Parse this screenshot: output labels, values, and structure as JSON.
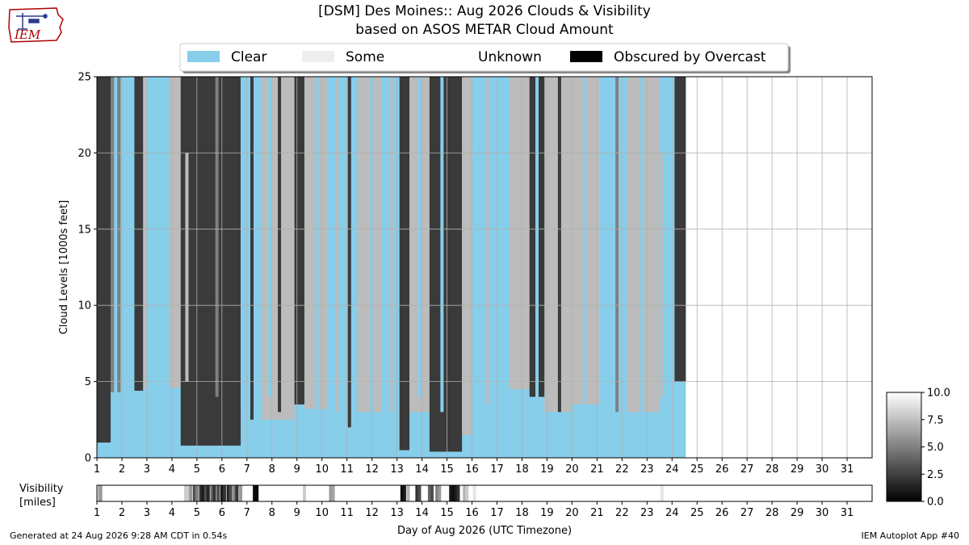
{
  "header": {
    "title_line1": "[DSM] Des Moines:: Aug 2026 Clouds & Visibility",
    "title_line2": "based on ASOS METAR Cloud Amount"
  },
  "logo": {
    "text": "IEM",
    "icon": "iowa-state-outline-logo"
  },
  "footer": {
    "generated": "Generated at 24 Aug 2026 9:28 AM CDT in 0.54s",
    "app": "IEM Autoplot App #40"
  },
  "chart_data": [
    {
      "type": "area",
      "title": "[DSM] Des Moines:: Aug 2026 Clouds & Visibility",
      "ylabel": "Cloud Levels [1000s feet]",
      "xlabel": "Day of Aug 2026 (UTC Timezone)",
      "ylim": [
        0,
        25
      ],
      "xlim": [
        1,
        32
      ],
      "yticks": [
        0,
        5,
        10,
        15,
        20,
        25
      ],
      "xticks": [
        1,
        2,
        3,
        4,
        5,
        6,
        7,
        8,
        9,
        10,
        11,
        12,
        13,
        14,
        15,
        16,
        17,
        18,
        19,
        20,
        21,
        22,
        23,
        24,
        25,
        26,
        27,
        28,
        29,
        30,
        31
      ],
      "grid": true,
      "legend": {
        "placement": "top-center",
        "entries": [
          {
            "label": "Clear",
            "color": "#87ceeb"
          },
          {
            "label": "Some",
            "color": "#eeeeee"
          },
          {
            "label": "Unknown",
            "color": "#ffffff"
          },
          {
            "label": "Obscured by Overcast",
            "color": "#000000"
          }
        ]
      },
      "data_end_day": 24.55,
      "colors": {
        "clear": "#87ceeb",
        "few": "#bcbcbc",
        "scattered": "#7f7f7f",
        "broken": "#3a3a3a",
        "overcast": "#000000"
      },
      "segments": [
        {
          "start": 1.0,
          "end": 1.55,
          "base": 1.0,
          "cover": "broken"
        },
        {
          "start": 1.55,
          "end": 1.95,
          "base": 4.3,
          "cover": "scattered"
        },
        {
          "start": 1.95,
          "end": 2.5,
          "base": 4.2,
          "cover": "clear"
        },
        {
          "start": 2.5,
          "end": 2.85,
          "base": 4.4,
          "cover": "broken"
        },
        {
          "start": 2.85,
          "end": 3.9,
          "base": 4.0,
          "cover": "clear"
        },
        {
          "start": 3.9,
          "end": 4.35,
          "base": 4.6,
          "cover": "few"
        },
        {
          "start": 4.35,
          "end": 6.75,
          "base": 0.8,
          "cover": "broken"
        },
        {
          "start": 6.75,
          "end": 7.6,
          "base": 3.0,
          "cover": "clear"
        },
        {
          "start": 7.6,
          "end": 8.9,
          "base": 2.5,
          "cover": "few"
        },
        {
          "start": 8.9,
          "end": 9.3,
          "base": 3.5,
          "cover": "broken"
        },
        {
          "start": 9.3,
          "end": 10.2,
          "base": 3.2,
          "cover": "few"
        },
        {
          "start": 10.2,
          "end": 11.4,
          "base": 4.0,
          "cover": "clear"
        },
        {
          "start": 11.4,
          "end": 12.4,
          "base": 3.0,
          "cover": "few"
        },
        {
          "start": 12.4,
          "end": 13.1,
          "base": 4.2,
          "cover": "clear"
        },
        {
          "start": 13.1,
          "end": 13.5,
          "base": 0.5,
          "cover": "broken"
        },
        {
          "start": 13.5,
          "end": 14.3,
          "base": 3.0,
          "cover": "few"
        },
        {
          "start": 14.3,
          "end": 15.6,
          "base": 0.4,
          "cover": "broken"
        },
        {
          "start": 15.6,
          "end": 16.0,
          "base": 1.5,
          "cover": "few"
        },
        {
          "start": 16.0,
          "end": 17.5,
          "base": 4.0,
          "cover": "clear"
        },
        {
          "start": 17.5,
          "end": 18.3,
          "base": 4.5,
          "cover": "few"
        },
        {
          "start": 18.3,
          "end": 18.9,
          "base": 4.0,
          "cover": "broken"
        },
        {
          "start": 18.9,
          "end": 20.0,
          "base": 3.0,
          "cover": "few"
        },
        {
          "start": 20.0,
          "end": 21.1,
          "base": 3.5,
          "cover": "few"
        },
        {
          "start": 21.1,
          "end": 22.2,
          "base": 4.5,
          "cover": "clear"
        },
        {
          "start": 22.2,
          "end": 23.5,
          "base": 3.0,
          "cover": "few"
        },
        {
          "start": 23.5,
          "end": 24.1,
          "base": 4.0,
          "cover": "clear"
        },
        {
          "start": 24.1,
          "end": 24.55,
          "base": 5.0,
          "cover": "broken"
        }
      ],
      "spikes": [
        {
          "day": 1.75,
          "base": 3.5,
          "top": 25,
          "cover": "clear"
        },
        {
          "day": 2.95,
          "base": 4.5,
          "top": 25,
          "cover": "few"
        },
        {
          "day": 4.6,
          "base": 5.0,
          "top": 20,
          "cover": "few"
        },
        {
          "day": 5.8,
          "base": 4.0,
          "top": 25,
          "cover": "scattered"
        },
        {
          "day": 7.2,
          "base": 2.5,
          "top": 25,
          "cover": "broken"
        },
        {
          "day": 7.9,
          "base": 4.0,
          "top": 25,
          "cover": "clear"
        },
        {
          "day": 8.3,
          "base": 3.0,
          "top": 25,
          "cover": "broken"
        },
        {
          "day": 9.8,
          "base": 3.0,
          "top": 25,
          "cover": "clear"
        },
        {
          "day": 10.6,
          "base": 3.0,
          "top": 25,
          "cover": "few"
        },
        {
          "day": 11.1,
          "base": 2.0,
          "top": 25,
          "cover": "broken"
        },
        {
          "day": 12.0,
          "base": 3.0,
          "top": 25,
          "cover": "clear"
        },
        {
          "day": 12.8,
          "base": 3.0,
          "top": 25,
          "cover": "few"
        },
        {
          "day": 13.9,
          "base": 4.0,
          "top": 25,
          "cover": "clear"
        },
        {
          "day": 14.8,
          "base": 3.0,
          "top": 25,
          "cover": "clear"
        },
        {
          "day": 16.6,
          "base": 3.5,
          "top": 25,
          "cover": "few"
        },
        {
          "day": 18.6,
          "base": 3.0,
          "top": 25,
          "cover": "clear"
        },
        {
          "day": 19.5,
          "base": 3.0,
          "top": 25,
          "cover": "broken"
        },
        {
          "day": 20.5,
          "base": 3.0,
          "top": 25,
          "cover": "clear"
        },
        {
          "day": 21.8,
          "base": 3.0,
          "top": 25,
          "cover": "scattered"
        },
        {
          "day": 22.8,
          "base": 3.0,
          "top": 25,
          "cover": "clear"
        },
        {
          "day": 23.6,
          "base": 4.0,
          "top": 20,
          "cover": "few"
        }
      ]
    },
    {
      "type": "heatmap",
      "ylabel": "Visibility [miles]",
      "xlabel": "Day of Aug 2026 (UTC Timezone)",
      "xlim": [
        1,
        32
      ],
      "xticks": [
        1,
        2,
        3,
        4,
        5,
        6,
        7,
        8,
        9,
        10,
        11,
        12,
        13,
        14,
        15,
        16,
        17,
        18,
        19,
        20,
        21,
        22,
        23,
        24,
        25,
        26,
        27,
        28,
        29,
        30,
        31
      ],
      "colorbar": {
        "range": [
          0.0,
          10.0
        ],
        "ticks": [
          "0.0",
          "2.5",
          "5.0",
          "7.5",
          "10.0"
        ]
      },
      "values": [
        {
          "day": 1.1,
          "vis": 7.0
        },
        {
          "day": 1.15,
          "vis": 6.0
        },
        {
          "day": 4.55,
          "vis": 8.0
        },
        {
          "day": 4.65,
          "vis": 8.0
        },
        {
          "day": 4.75,
          "vis": 6.0
        },
        {
          "day": 4.9,
          "vis": 3.0
        },
        {
          "day": 5.0,
          "vis": 5.0
        },
        {
          "day": 5.15,
          "vis": 2.0
        },
        {
          "day": 5.25,
          "vis": 1.0
        },
        {
          "day": 5.35,
          "vis": 3.0
        },
        {
          "day": 5.45,
          "vis": 1.5
        },
        {
          "day": 5.6,
          "vis": 4.0
        },
        {
          "day": 5.7,
          "vis": 2.0
        },
        {
          "day": 5.85,
          "vis": 3.0
        },
        {
          "day": 6.0,
          "vis": 1.0
        },
        {
          "day": 6.1,
          "vis": 2.0
        },
        {
          "day": 6.25,
          "vis": 1.5
        },
        {
          "day": 6.35,
          "vis": 3.0
        },
        {
          "day": 6.5,
          "vis": 5.0
        },
        {
          "day": 6.6,
          "vis": 2.0
        },
        {
          "day": 6.75,
          "vis": 6.0
        },
        {
          "day": 7.3,
          "vis": 0.5
        },
        {
          "day": 7.4,
          "vis": 0.3
        },
        {
          "day": 9.3,
          "vis": 8.0
        },
        {
          "day": 10.35,
          "vis": 6.0
        },
        {
          "day": 10.45,
          "vis": 6.5
        },
        {
          "day": 13.2,
          "vis": 0.5
        },
        {
          "day": 13.3,
          "vis": 1.0
        },
        {
          "day": 13.45,
          "vis": 7.0
        },
        {
          "day": 13.8,
          "vis": 2.0
        },
        {
          "day": 13.9,
          "vis": 3.0
        },
        {
          "day": 14.3,
          "vis": 4.0
        },
        {
          "day": 14.4,
          "vis": 3.0
        },
        {
          "day": 14.6,
          "vis": 5.0
        },
        {
          "day": 14.7,
          "vis": 6.0
        },
        {
          "day": 15.15,
          "vis": 1.0
        },
        {
          "day": 15.25,
          "vis": 0.5
        },
        {
          "day": 15.35,
          "vis": 1.0
        },
        {
          "day": 15.45,
          "vis": 2.0
        },
        {
          "day": 15.7,
          "vis": 7.0
        },
        {
          "day": 15.8,
          "vis": 8.0
        },
        {
          "day": 16.1,
          "vis": 9.0
        },
        {
          "day": 23.6,
          "vis": 9.0
        }
      ]
    }
  ]
}
